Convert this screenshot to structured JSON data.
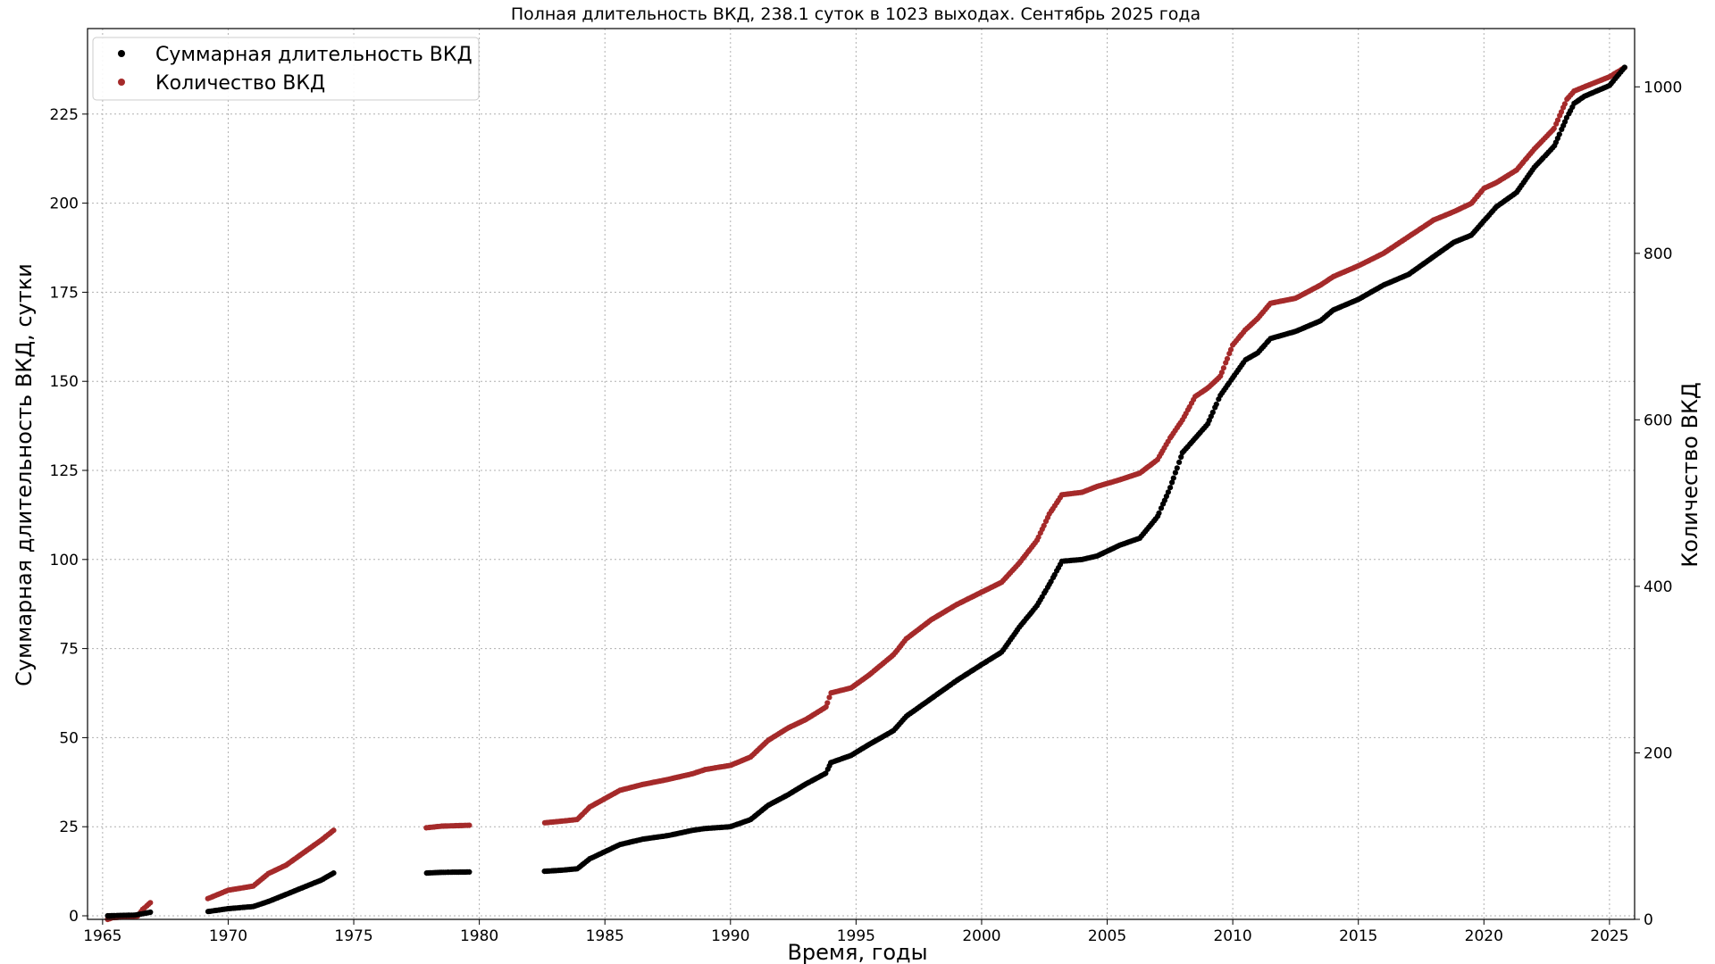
{
  "chart_data": {
    "type": "scatter",
    "title": "Полная длительность ВКД, 238.1 суток в 1023 выходах. Сентябрь 2025 года",
    "xlabel": "Время, годы",
    "ylabel": "Суммарная длительность ВКД, сутки",
    "y2label": "Количество ВКД",
    "xlim": [
      1964.4,
      2026.0
    ],
    "ylim": [
      -1,
      249
    ],
    "y2lim": [
      0,
      1070
    ],
    "grid": true,
    "legend_position": "top-left",
    "x_ticks": [
      1965,
      1970,
      1975,
      1980,
      1985,
      1990,
      1995,
      2000,
      2005,
      2010,
      2015,
      2020,
      2025
    ],
    "y_ticks": [
      0,
      25,
      50,
      75,
      100,
      125,
      150,
      175,
      200,
      225
    ],
    "y2_ticks": [
      0,
      200,
      400,
      600,
      800,
      1000
    ],
    "colors": {
      "duration": "#000000",
      "count": "#a52a2a",
      "grid": "#b0b0b0"
    },
    "series": [
      {
        "name": "Суммарная длительность ВКД",
        "axis": "left",
        "anchors": [
          [
            1965.2,
            0
          ],
          [
            1966.3,
            0.2
          ],
          [
            1966.9,
            1
          ],
          [
            1969.2,
            1.2
          ],
          [
            1970.0,
            2
          ],
          [
            1971.0,
            2.6
          ],
          [
            1971.6,
            4
          ],
          [
            1972.3,
            6
          ],
          [
            1973.0,
            8
          ],
          [
            1973.7,
            10
          ],
          [
            1974.2,
            12
          ],
          [
            1977.9,
            12
          ],
          [
            1978.5,
            12.2
          ],
          [
            1979.6,
            12.3
          ],
          [
            1982.6,
            12.5
          ],
          [
            1983.3,
            12.8
          ],
          [
            1983.9,
            13.2
          ],
          [
            1984.4,
            16
          ],
          [
            1985.0,
            18
          ],
          [
            1985.6,
            20
          ],
          [
            1986.5,
            21.5
          ],
          [
            1987.5,
            22.5
          ],
          [
            1988.5,
            24
          ],
          [
            1989.0,
            24.5
          ],
          [
            1990.0,
            25
          ],
          [
            1990.8,
            27
          ],
          [
            1991.5,
            31
          ],
          [
            1992.3,
            34
          ],
          [
            1993.0,
            37
          ],
          [
            1993.8,
            40
          ],
          [
            1994.0,
            43
          ],
          [
            1994.8,
            45
          ],
          [
            1995.5,
            48
          ],
          [
            1996.5,
            52
          ],
          [
            1997.0,
            56
          ],
          [
            1998.0,
            61
          ],
          [
            1999.0,
            66
          ],
          [
            2000.0,
            70.5
          ],
          [
            2000.8,
            74
          ],
          [
            2001.5,
            81
          ],
          [
            2002.2,
            87
          ],
          [
            2002.7,
            93
          ],
          [
            2003.2,
            99.5
          ],
          [
            2004.0,
            100
          ],
          [
            2004.6,
            101
          ],
          [
            2005.5,
            104
          ],
          [
            2006.3,
            106
          ],
          [
            2007.0,
            112
          ],
          [
            2007.5,
            120
          ],
          [
            2008.0,
            130
          ],
          [
            2008.5,
            134
          ],
          [
            2009.0,
            138
          ],
          [
            2009.5,
            146
          ],
          [
            2010.0,
            151
          ],
          [
            2010.5,
            156
          ],
          [
            2011.0,
            158
          ],
          [
            2011.5,
            162
          ],
          [
            2012.5,
            164
          ],
          [
            2013.5,
            167
          ],
          [
            2014.0,
            170
          ],
          [
            2015.0,
            173
          ],
          [
            2016.0,
            177
          ],
          [
            2017.0,
            180
          ],
          [
            2018.0,
            185
          ],
          [
            2018.8,
            189
          ],
          [
            2019.5,
            191
          ],
          [
            2020.0,
            195
          ],
          [
            2020.5,
            199
          ],
          [
            2021.3,
            203
          ],
          [
            2022.0,
            210
          ],
          [
            2022.8,
            216
          ],
          [
            2023.3,
            224
          ],
          [
            2023.6,
            228
          ],
          [
            2024.0,
            230
          ],
          [
            2025.0,
            233
          ],
          [
            2025.6,
            238.1
          ]
        ]
      },
      {
        "name": "Количество ВКД",
        "axis": "right",
        "anchors": [
          [
            1965.2,
            0
          ],
          [
            1965.4,
            2
          ],
          [
            1966.4,
            4
          ],
          [
            1966.6,
            12
          ],
          [
            1966.9,
            20
          ],
          [
            1969.2,
            25
          ],
          [
            1970.0,
            35
          ],
          [
            1971.0,
            40
          ],
          [
            1971.6,
            55
          ],
          [
            1972.3,
            65
          ],
          [
            1973.0,
            80
          ],
          [
            1973.7,
            95
          ],
          [
            1974.2,
            107
          ],
          [
            1977.9,
            110
          ],
          [
            1978.5,
            112
          ],
          [
            1979.6,
            113
          ],
          [
            1982.6,
            116
          ],
          [
            1983.3,
            118
          ],
          [
            1983.9,
            120
          ],
          [
            1984.4,
            135
          ],
          [
            1985.0,
            145
          ],
          [
            1985.6,
            155
          ],
          [
            1986.5,
            162
          ],
          [
            1987.5,
            168
          ],
          [
            1988.5,
            175
          ],
          [
            1989.0,
            180
          ],
          [
            1990.0,
            185
          ],
          [
            1990.8,
            195
          ],
          [
            1991.5,
            215
          ],
          [
            1992.3,
            230
          ],
          [
            1993.0,
            240
          ],
          [
            1993.8,
            255
          ],
          [
            1994.0,
            272
          ],
          [
            1994.8,
            278
          ],
          [
            1995.5,
            293
          ],
          [
            1996.5,
            318
          ],
          [
            1997.0,
            337
          ],
          [
            1998.0,
            360
          ],
          [
            1999.0,
            378
          ],
          [
            2000.0,
            393
          ],
          [
            2000.8,
            405
          ],
          [
            2001.5,
            428
          ],
          [
            2002.2,
            455
          ],
          [
            2002.7,
            487
          ],
          [
            2003.2,
            510
          ],
          [
            2004.0,
            513
          ],
          [
            2004.6,
            520
          ],
          [
            2005.5,
            528
          ],
          [
            2006.3,
            536
          ],
          [
            2007.0,
            552
          ],
          [
            2007.5,
            578
          ],
          [
            2008.0,
            600
          ],
          [
            2008.5,
            628
          ],
          [
            2009.0,
            638
          ],
          [
            2009.5,
            652
          ],
          [
            2010.0,
            690
          ],
          [
            2010.5,
            708
          ],
          [
            2011.0,
            722
          ],
          [
            2011.5,
            740
          ],
          [
            2012.5,
            746
          ],
          [
            2013.5,
            762
          ],
          [
            2014.0,
            772
          ],
          [
            2015.0,
            785
          ],
          [
            2016.0,
            800
          ],
          [
            2017.0,
            820
          ],
          [
            2018.0,
            840
          ],
          [
            2018.8,
            850
          ],
          [
            2019.5,
            860
          ],
          [
            2020.0,
            878
          ],
          [
            2020.5,
            885
          ],
          [
            2021.3,
            900
          ],
          [
            2022.0,
            925
          ],
          [
            2022.8,
            950
          ],
          [
            2023.3,
            985
          ],
          [
            2023.6,
            995
          ],
          [
            2024.0,
            1000
          ],
          [
            2025.0,
            1012
          ],
          [
            2025.6,
            1023
          ]
        ]
      }
    ]
  }
}
